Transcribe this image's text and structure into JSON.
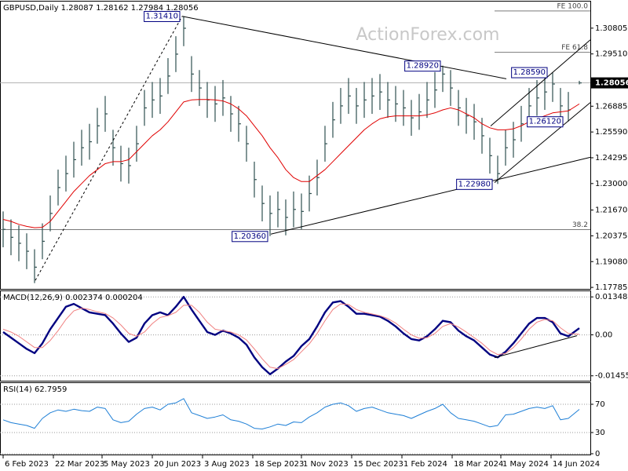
{
  "chart_data": [
    {
      "type": "ohlc",
      "title": "GBPUSD,Daily  1.28087 1.28162 1.27984 1.28056",
      "watermark": "ActionForex.com",
      "bar_color": "#2f4f4f",
      "x": [
        0,
        5,
        10,
        15,
        20,
        25,
        30,
        35,
        40,
        45,
        50,
        55,
        60,
        65,
        70,
        75,
        80,
        85,
        90,
        95,
        100,
        105,
        110,
        115,
        120,
        125,
        130,
        135,
        140,
        145,
        150,
        155,
        160,
        165,
        170,
        175,
        180,
        185,
        190,
        195,
        200,
        205,
        210,
        215,
        220,
        225,
        230,
        235,
        240,
        245,
        250,
        255,
        260,
        265,
        270,
        275,
        280,
        285,
        290,
        295,
        300,
        305,
        310,
        315,
        320,
        325,
        330,
        335,
        340,
        345,
        350,
        355,
        360,
        367
      ],
      "high": [
        1.216,
        1.212,
        1.209,
        1.205,
        1.197,
        1.21,
        1.224,
        1.237,
        1.244,
        1.251,
        1.257,
        1.26,
        1.268,
        1.274,
        1.257,
        1.249,
        1.248,
        1.259,
        1.277,
        1.281,
        1.283,
        1.293,
        1.304,
        1.3141,
        1.294,
        1.287,
        1.281,
        1.279,
        1.282,
        1.274,
        1.269,
        1.259,
        1.241,
        1.229,
        1.224,
        1.226,
        1.222,
        1.226,
        1.225,
        1.234,
        1.242,
        1.259,
        1.271,
        1.278,
        1.283,
        1.278,
        1.281,
        1.283,
        1.285,
        1.281,
        1.279,
        1.277,
        1.272,
        1.275,
        1.281,
        1.286,
        1.2892,
        1.287,
        1.277,
        1.273,
        1.27,
        1.263,
        1.253,
        1.244,
        1.257,
        1.261,
        1.269,
        1.278,
        1.282,
        1.285,
        1.2859,
        1.278,
        1.276,
        1.2816
      ],
      "low": [
        1.198,
        1.194,
        1.191,
        1.187,
        1.18,
        1.192,
        1.206,
        1.219,
        1.226,
        1.233,
        1.239,
        1.242,
        1.25,
        1.256,
        1.239,
        1.231,
        1.23,
        1.241,
        1.259,
        1.263,
        1.265,
        1.275,
        1.286,
        1.299,
        1.276,
        1.269,
        1.263,
        1.261,
        1.264,
        1.256,
        1.251,
        1.241,
        1.223,
        1.211,
        1.2036,
        1.208,
        1.204,
        1.208,
        1.207,
        1.216,
        1.224,
        1.241,
        1.253,
        1.26,
        1.265,
        1.26,
        1.263,
        1.265,
        1.267,
        1.263,
        1.261,
        1.259,
        1.254,
        1.257,
        1.263,
        1.268,
        1.276,
        1.269,
        1.259,
        1.255,
        1.252,
        1.245,
        1.235,
        1.2298,
        1.239,
        1.243,
        1.251,
        1.26,
        1.264,
        1.267,
        1.271,
        1.26,
        1.2612,
        1.2798
      ],
      "close": [
        1.207,
        1.203,
        1.2,
        1.196,
        1.188,
        1.201,
        1.215,
        1.228,
        1.235,
        1.242,
        1.248,
        1.251,
        1.259,
        1.265,
        1.248,
        1.24,
        1.239,
        1.25,
        1.268,
        1.272,
        1.274,
        1.284,
        1.295,
        1.308,
        1.285,
        1.278,
        1.272,
        1.27,
        1.273,
        1.265,
        1.26,
        1.25,
        1.232,
        1.22,
        1.215,
        1.217,
        1.213,
        1.217,
        1.216,
        1.225,
        1.233,
        1.25,
        1.262,
        1.269,
        1.274,
        1.269,
        1.272,
        1.274,
        1.276,
        1.272,
        1.27,
        1.268,
        1.263,
        1.266,
        1.272,
        1.277,
        1.285,
        1.278,
        1.268,
        1.264,
        1.261,
        1.254,
        1.244,
        1.235,
        1.248,
        1.252,
        1.26,
        1.269,
        1.273,
        1.276,
        1.28,
        1.269,
        1.267,
        1.28056
      ],
      "series": [
        {
          "color": "#e00000",
          "values": [
            1.212,
            1.211,
            1.2095,
            1.2085,
            1.2078,
            1.208,
            1.211,
            1.216,
            1.221,
            1.226,
            1.23,
            1.234,
            1.237,
            1.24,
            1.241,
            1.241,
            1.242,
            1.246,
            1.25,
            1.254,
            1.257,
            1.261,
            1.266,
            1.271,
            1.272,
            1.2722,
            1.2722,
            1.272,
            1.2715,
            1.27,
            1.2675,
            1.264,
            1.259,
            1.254,
            1.248,
            1.243,
            1.237,
            1.233,
            1.231,
            1.231,
            1.234,
            1.237,
            1.241,
            1.245,
            1.249,
            1.253,
            1.257,
            1.26,
            1.2625,
            1.2635,
            1.264,
            1.264,
            1.264,
            1.264,
            1.2645,
            1.2655,
            1.267,
            1.268,
            1.267,
            1.265,
            1.263,
            1.26,
            1.258,
            1.257,
            1.257,
            1.2575,
            1.259,
            1.261,
            1.2625,
            1.264,
            1.2655,
            1.266,
            1.2665,
            1.27
          ]
        }
      ],
      "xlim": [
        -2,
        374
      ],
      "xticks": [
        {
          "value": 0,
          "label": "6 Feb 2023"
        },
        {
          "value": 32,
          "label": "22 Mar 2023"
        },
        {
          "value": 63,
          "label": "5 May 2023"
        },
        {
          "value": 95,
          "label": "20 Jun 2023"
        },
        {
          "value": 127,
          "label": "3 Aug 2023"
        },
        {
          "value": 159,
          "label": "18 Sep 2023"
        },
        {
          "value": 190,
          "label": "1 Nov 2023"
        },
        {
          "value": 222,
          "label": "15 Dec 2023"
        },
        {
          "value": 254,
          "label": "1 Feb 2024"
        },
        {
          "value": 286,
          "label": "18 Mar 2024"
        },
        {
          "value": 317,
          "label": "1 May 2024"
        },
        {
          "value": 349,
          "label": "14 Jun 2024"
        }
      ],
      "ylim": [
        1.1771,
        1.3214
      ],
      "yticks": [
        1.30805,
        {
          "value": 1.2951,
          "label": "1.29510"
        },
        1.26885,
        {
          "value": 1.2559,
          "label": "1.25590"
        },
        1.24295,
        {
          "value": 1.23,
          "label": "1.23000"
        },
        {
          "value": 1.2167,
          "label": "1.21670"
        },
        1.20375,
        {
          "value": 1.1908,
          "label": "1.19080"
        },
        1.17785
      ],
      "grid": false,
      "last_price": 1.28056,
      "levels": [
        {
          "text": "FE 100.0",
          "y": 1.3167,
          "from": 313
        },
        {
          "text": "FE 61.8",
          "y": 1.2959,
          "from": 313
        },
        {
          "text": "38.2",
          "y": 1.2069
        }
      ],
      "trendlines": [
        {
          "points": [
            [
              20.5,
              1.1814
            ],
            [
              114,
              1.314
            ]
          ],
          "dashed": true
        },
        {
          "points": [
            [
              114,
              1.314
            ],
            [
              320.5,
              1.2826
            ]
          ]
        },
        {
          "points": [
            [
              170.5,
              1.2046
            ],
            [
              374,
              1.2432
            ]
          ]
        },
        {
          "points": [
            [
              310.5,
              1.2589
            ],
            [
              374,
              1.3022
            ]
          ]
        },
        {
          "points": [
            [
              313,
              1.2305
            ],
            [
              374,
              1.2707
            ]
          ]
        }
      ],
      "annotations": [
        {
          "text": "1.31410",
          "x": 114,
          "y": 1.3141
        },
        {
          "text": "1.28920",
          "x": 280,
          "y": 1.2892
        },
        {
          "text": "1.28590",
          "x": 348,
          "y": 1.2859
        },
        {
          "text": "1.26120",
          "x": 358,
          "y": 1.2612
        },
        {
          "text": "1.22980",
          "x": 313,
          "y": 1.2298
        },
        {
          "text": "1.20360",
          "x": 170,
          "y": 1.2036
        }
      ]
    },
    {
      "type": "line",
      "title": "MACD(12,26,9) 0.002374 0.000204",
      "series": [
        {
          "color": "#000080",
          "values": [
            0.001,
            -0.001,
            -0.003,
            -0.005,
            -0.0065,
            -0.003,
            0.002,
            0.006,
            0.01,
            0.011,
            0.0095,
            0.008,
            0.0075,
            0.007,
            0.004,
            0.0005,
            -0.0025,
            -0.001,
            0.004,
            0.007,
            0.008,
            0.007,
            0.01,
            0.0135,
            0.009,
            0.005,
            0.001,
            0.0,
            0.0015,
            0.0005,
            -0.001,
            -0.0035,
            -0.008,
            -0.0115,
            -0.014,
            -0.012,
            -0.0095,
            -0.0075,
            -0.004,
            -0.0015,
            0.003,
            0.008,
            0.0115,
            0.012,
            0.01,
            0.0075,
            0.0075,
            0.007,
            0.0065,
            0.005,
            0.003,
            0.0005,
            -0.0015,
            -0.002,
            -0.0005,
            0.002,
            0.005,
            0.0045,
            0.0015,
            -0.0005,
            -0.002,
            -0.0045,
            -0.007,
            -0.008,
            -0.006,
            -0.003,
            0.0005,
            0.004,
            0.006,
            0.006,
            0.0045,
            0.0005,
            -0.0005,
            0.002374
          ]
        },
        {
          "color": "#f08080",
          "values": [
            0.002,
            0.001,
            -0.0005,
            -0.0025,
            -0.0045,
            -0.0045,
            -0.002,
            0.0015,
            0.0055,
            0.0085,
            0.0095,
            0.009,
            0.0082,
            0.0076,
            0.006,
            0.0035,
            0.0005,
            -0.0005,
            0.001,
            0.004,
            0.0062,
            0.0068,
            0.008,
            0.0105,
            0.0105,
            0.008,
            0.0045,
            0.002,
            0.0015,
            0.001,
            0.0,
            -0.0018,
            -0.005,
            -0.0085,
            -0.0115,
            -0.012,
            -0.0105,
            -0.0088,
            -0.006,
            -0.0032,
            0.0005,
            0.005,
            0.009,
            0.011,
            0.0108,
            0.009,
            0.008,
            0.0074,
            0.0068,
            0.0058,
            0.0042,
            0.002,
            0.0,
            -0.0012,
            -0.001,
            0.0005,
            0.003,
            0.004,
            0.0028,
            0.001,
            -0.001,
            -0.003,
            -0.0055,
            -0.007,
            -0.0066,
            -0.0045,
            -0.0015,
            0.002,
            0.0045,
            0.0055,
            0.005,
            0.0025,
            0.0005,
            0.000204
          ]
        }
      ],
      "ylim": [
        -0.0163,
        0.0155
      ],
      "yticks": [
        0.013489,
        {
          "value": 0,
          "label": "0.00"
        },
        -0.014554
      ],
      "grid": true,
      "trendlines": [
        {
          "points": [
            [
              313,
              -0.0081
            ],
            [
              365.5,
              -0.0003
            ]
          ]
        }
      ]
    },
    {
      "type": "line",
      "title": "RSI(14) 62.7959",
      "series": [
        {
          "color": "#1e7fd6",
          "values": [
            48,
            44,
            42,
            40,
            36,
            50,
            58,
            62,
            60,
            63,
            61,
            60,
            66,
            64,
            48,
            44,
            46,
            56,
            64,
            66,
            62,
            70,
            72,
            78,
            58,
            54,
            50,
            52,
            55,
            48,
            46,
            42,
            36,
            35,
            38,
            42,
            40,
            45,
            44,
            52,
            58,
            66,
            70,
            72,
            68,
            60,
            64,
            66,
            62,
            58,
            56,
            54,
            50,
            55,
            60,
            64,
            70,
            58,
            50,
            48,
            46,
            42,
            38,
            40,
            55,
            56,
            60,
            64,
            66,
            64,
            68,
            48,
            50,
            62.7959
          ]
        }
      ],
      "ylim": [
        0,
        100
      ],
      "yticks": [
        70,
        30,
        0
      ],
      "grid": true
    }
  ]
}
